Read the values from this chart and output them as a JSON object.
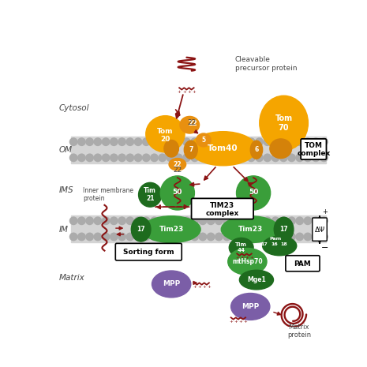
{
  "bg_color": "#ffffff",
  "orange": "#f5a500",
  "orange_dark": "#d4820a",
  "orange_mid": "#e89010",
  "green": "#3a9e3a",
  "green_dark": "#1e6b1e",
  "green_light": "#5aba5a",
  "purple": "#7b5ea7",
  "dark_red": "#8b1414",
  "text_color": "#444444",
  "gray_mem": "#c8c8c8",
  "gray_circ": "#a8a8a8",
  "label_cytosol": "Cytosol",
  "label_om": "OM",
  "label_ims": "IMS",
  "label_im": "IM",
  "label_matrix": "Matrix",
  "label_cleavable": "Cleavable\nprecursor protein",
  "label_tom_complex": "TOM\ncomplex",
  "label_tim23_complex": "TIM23\ncomplex",
  "label_sorting_form": "Sorting form",
  "label_pam": "PAM",
  "label_mpp": "MPP",
  "label_matrix_protein": "Matrix\nprotein",
  "label_inner_membrane": "Inner membrane\nprotein",
  "label_mthsp70": "mtHsp70",
  "label_mge1": "Mge1",
  "label_tim44": "Tim\n44",
  "label_tim21": "Tim\n21"
}
